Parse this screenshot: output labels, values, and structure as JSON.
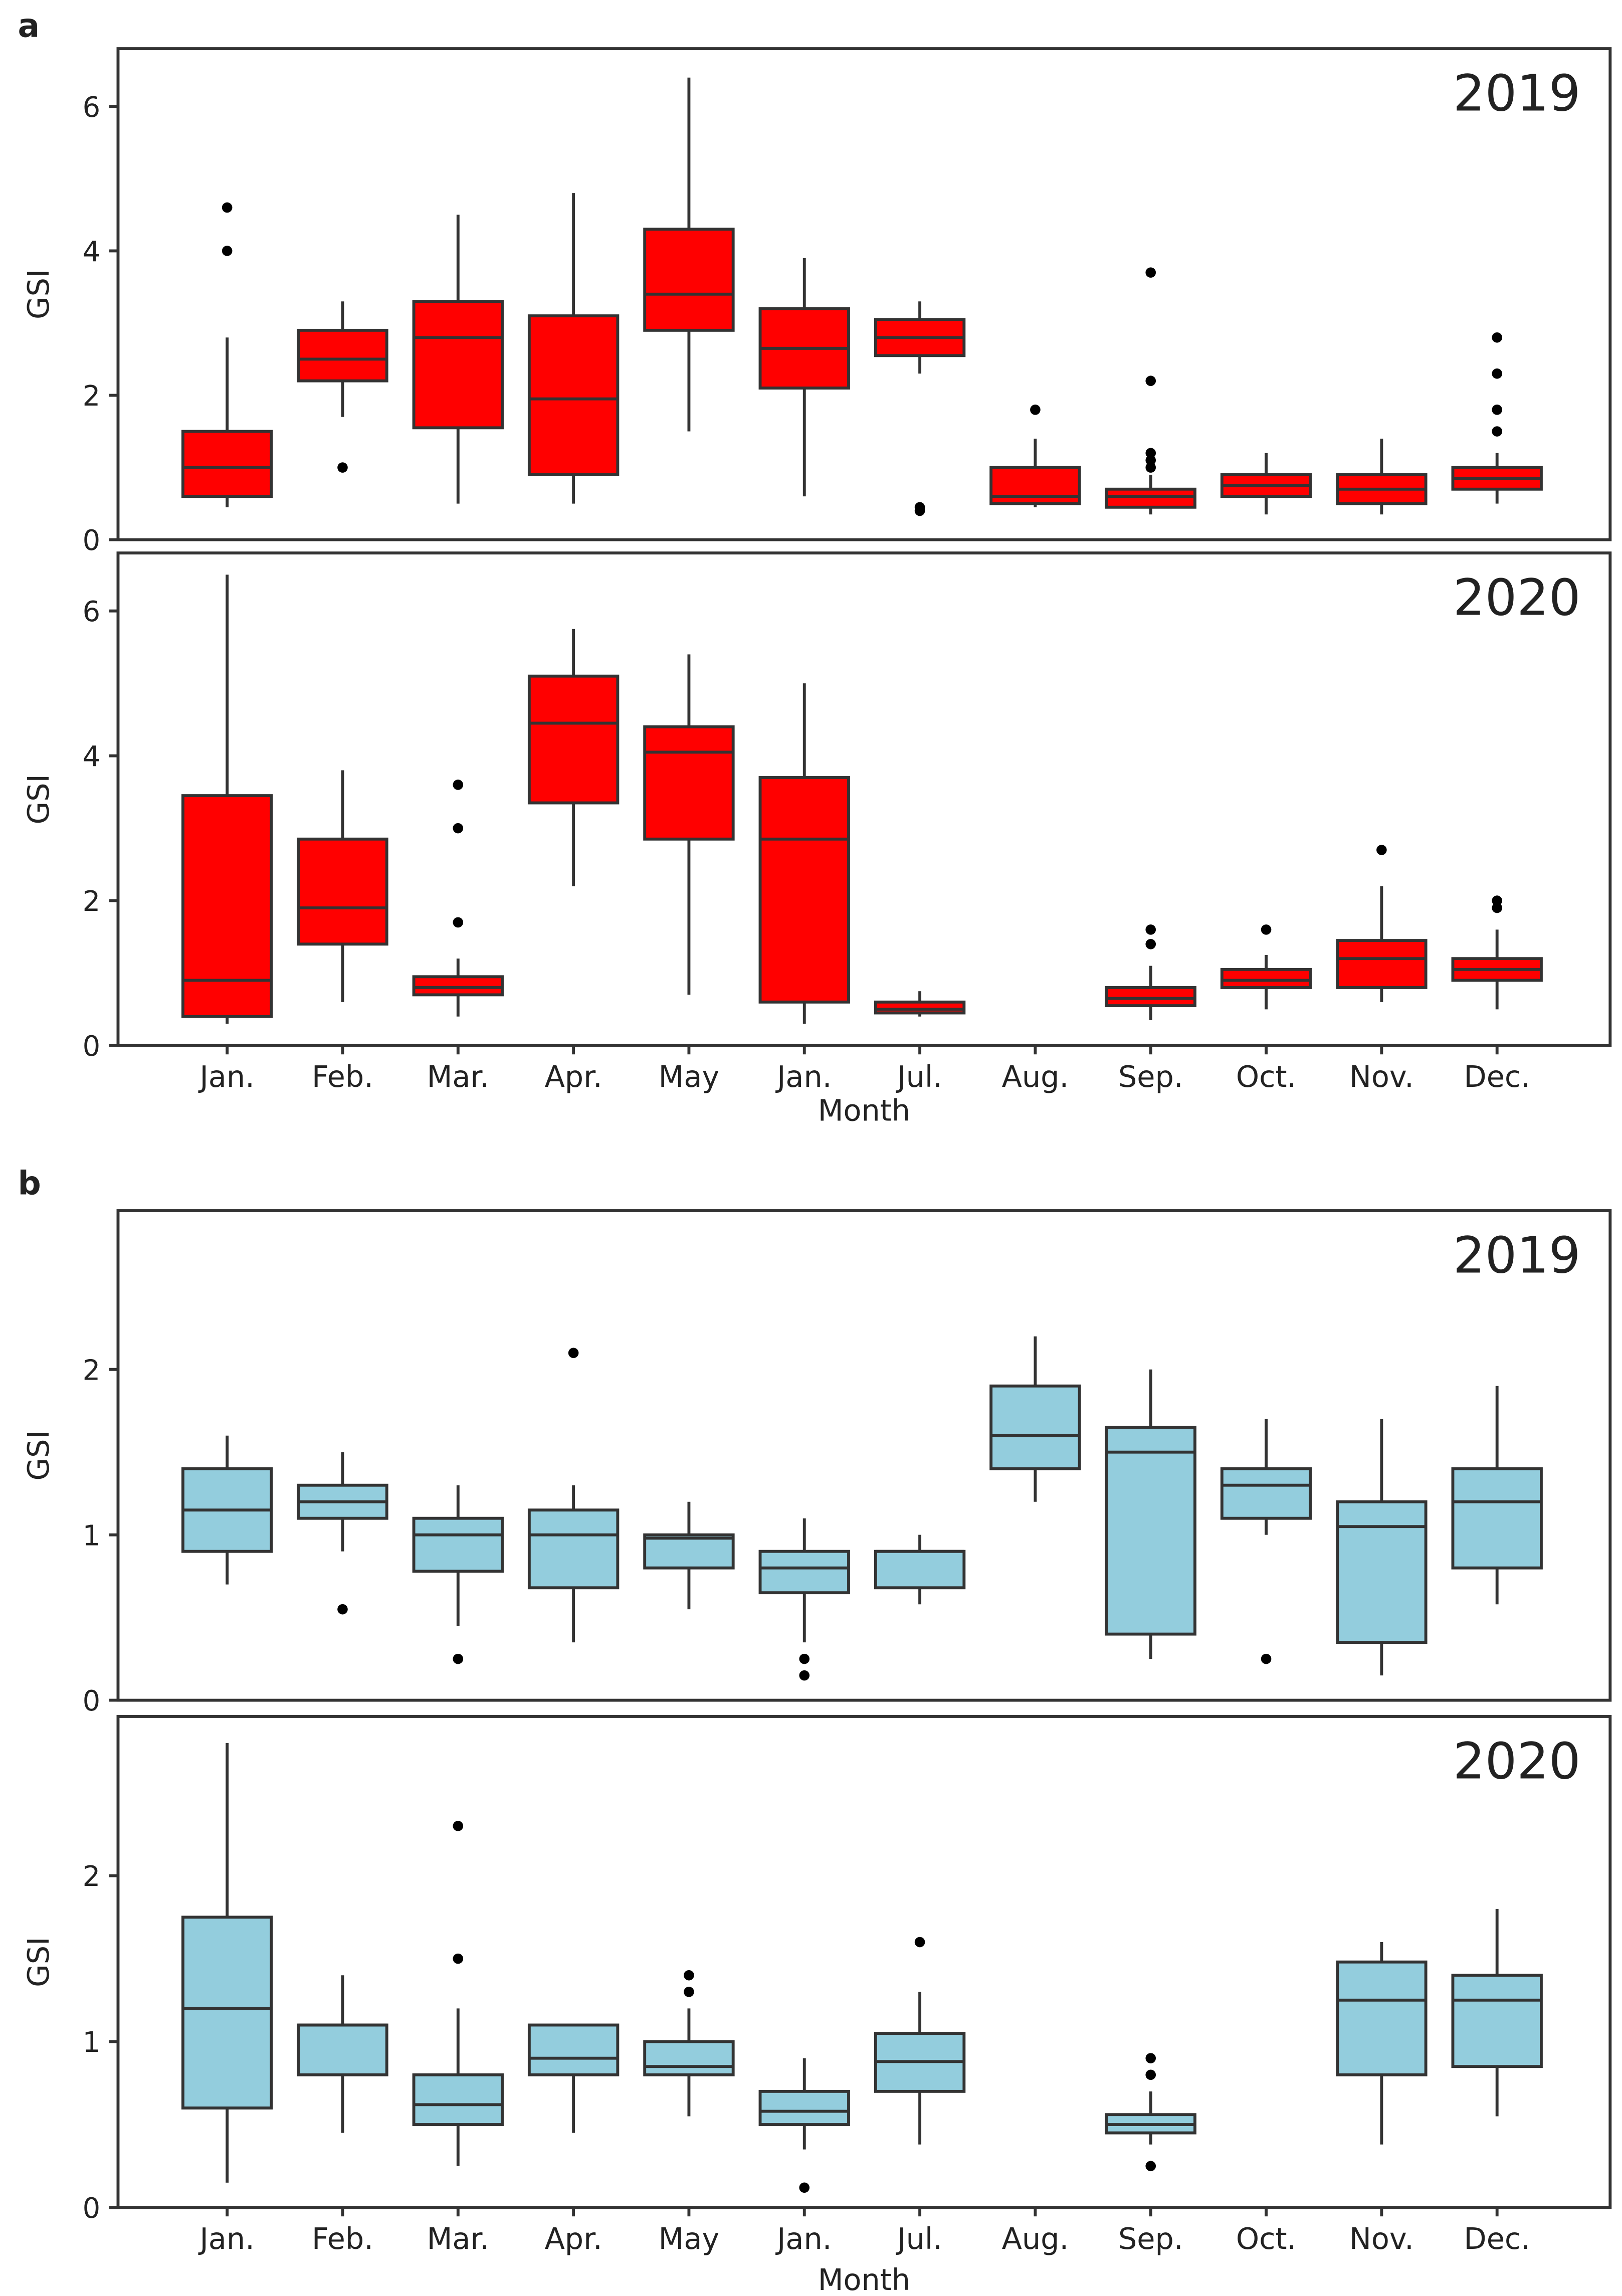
{
  "chart_data": [
    {
      "type": "box",
      "panel": "a",
      "title": "2019",
      "xlabel": "",
      "ylabel": "GSI",
      "ylim": [
        0,
        6.8
      ],
      "yticks": [
        0,
        2,
        4,
        6
      ],
      "fill": "#ff0000",
      "categories": [
        "Jan.",
        "Feb.",
        "Mar.",
        "Apr.",
        "May",
        "Jan.",
        "Jul.",
        "Aug.",
        "Sep.",
        "Oct.",
        "Nov.",
        "Dec."
      ],
      "boxes": [
        {
          "low": 0.45,
          "q1": 0.6,
          "med": 1.0,
          "q3": 1.5,
          "high": 2.8,
          "outliers": [
            4.0,
            4.6
          ]
        },
        {
          "low": 1.7,
          "q1": 2.2,
          "med": 2.5,
          "q3": 2.9,
          "high": 3.3,
          "outliers": [
            1.0
          ]
        },
        {
          "low": 0.5,
          "q1": 1.55,
          "med": 2.8,
          "q3": 3.3,
          "high": 4.5,
          "outliers": []
        },
        {
          "low": 0.5,
          "q1": 0.9,
          "med": 1.95,
          "q3": 3.1,
          "high": 4.8,
          "outliers": []
        },
        {
          "low": 1.5,
          "q1": 2.9,
          "med": 3.4,
          "q3": 4.3,
          "high": 6.4,
          "outliers": []
        },
        {
          "low": 0.6,
          "q1": 2.1,
          "med": 2.65,
          "q3": 3.2,
          "high": 3.9,
          "outliers": []
        },
        {
          "low": 2.3,
          "q1": 2.55,
          "med": 2.8,
          "q3": 3.05,
          "high": 3.3,
          "outliers": [
            0.4,
            0.45
          ]
        },
        {
          "low": 0.45,
          "q1": 0.5,
          "med": 0.6,
          "q3": 1.0,
          "high": 1.4,
          "outliers": [
            1.8
          ]
        },
        {
          "low": 0.35,
          "q1": 0.45,
          "med": 0.6,
          "q3": 0.7,
          "high": 0.9,
          "outliers": [
            1.0,
            1.1,
            1.2,
            2.2,
            3.7
          ]
        },
        {
          "low": 0.35,
          "q1": 0.6,
          "med": 0.75,
          "q3": 0.9,
          "high": 1.2,
          "outliers": []
        },
        {
          "low": 0.35,
          "q1": 0.5,
          "med": 0.7,
          "q3": 0.9,
          "high": 1.4,
          "outliers": []
        },
        {
          "low": 0.5,
          "q1": 0.7,
          "med": 0.85,
          "q3": 1.0,
          "high": 1.2,
          "outliers": [
            1.5,
            1.8,
            2.3,
            2.8
          ]
        }
      ]
    },
    {
      "type": "box",
      "panel": "",
      "title": "2020",
      "xlabel": "Month",
      "ylabel": "GSI",
      "ylim": [
        0,
        6.8
      ],
      "yticks": [
        0,
        2,
        4,
        6
      ],
      "fill": "#ff0000",
      "categories": [
        "Jan.",
        "Feb.",
        "Mar.",
        "Apr.",
        "May",
        "Jan.",
        "Jul.",
        "Aug.",
        "Sep.",
        "Oct.",
        "Nov.",
        "Dec."
      ],
      "boxes": [
        {
          "low": 0.3,
          "q1": 0.4,
          "med": 0.9,
          "q3": 3.45,
          "high": 6.5,
          "outliers": []
        },
        {
          "low": 0.6,
          "q1": 1.4,
          "med": 1.9,
          "q3": 2.85,
          "high": 3.8,
          "outliers": []
        },
        {
          "low": 0.4,
          "q1": 0.7,
          "med": 0.8,
          "q3": 0.95,
          "high": 1.2,
          "outliers": [
            1.7,
            3.0,
            3.6
          ]
        },
        {
          "low": 2.2,
          "q1": 3.35,
          "med": 4.45,
          "q3": 5.1,
          "high": 5.75,
          "outliers": []
        },
        {
          "low": 0.7,
          "q1": 2.85,
          "med": 4.05,
          "q3": 4.4,
          "high": 5.4,
          "outliers": []
        },
        {
          "low": 0.3,
          "q1": 0.6,
          "med": 2.85,
          "q3": 3.7,
          "high": 5.0,
          "outliers": []
        },
        {
          "low": 0.4,
          "q1": 0.45,
          "med": 0.5,
          "q3": 0.6,
          "high": 0.75,
          "outliers": []
        },
        null,
        {
          "low": 0.35,
          "q1": 0.55,
          "med": 0.65,
          "q3": 0.8,
          "high": 1.1,
          "outliers": [
            1.4,
            1.6
          ]
        },
        {
          "low": 0.5,
          "q1": 0.8,
          "med": 0.9,
          "q3": 1.05,
          "high": 1.25,
          "outliers": [
            1.6
          ]
        },
        {
          "low": 0.6,
          "q1": 0.8,
          "med": 1.2,
          "q3": 1.45,
          "high": 2.2,
          "outliers": [
            2.7
          ]
        },
        {
          "low": 0.5,
          "q1": 0.9,
          "med": 1.05,
          "q3": 1.2,
          "high": 1.6,
          "outliers": [
            1.9,
            2.0
          ]
        }
      ]
    },
    {
      "type": "box",
      "panel": "b",
      "title": "2019",
      "xlabel": "",
      "ylabel": "GSI",
      "ylim": [
        0,
        2.96
      ],
      "yticks": [
        0,
        1,
        2
      ],
      "fill": "#93cddd",
      "categories": [
        "Jan.",
        "Feb.",
        "Mar.",
        "Apr.",
        "May",
        "Jan.",
        "Jul.",
        "Aug.",
        "Sep.",
        "Oct.",
        "Nov.",
        "Dec."
      ],
      "boxes": [
        {
          "low": 0.7,
          "q1": 0.9,
          "med": 1.15,
          "q3": 1.4,
          "high": 1.6,
          "outliers": []
        },
        {
          "low": 0.9,
          "q1": 1.1,
          "med": 1.2,
          "q3": 1.3,
          "high": 1.5,
          "outliers": [
            0.55
          ]
        },
        {
          "low": 0.45,
          "q1": 0.78,
          "med": 1.0,
          "q3": 1.1,
          "high": 1.3,
          "outliers": [
            0.25
          ]
        },
        {
          "low": 0.35,
          "q1": 0.68,
          "med": 1.0,
          "q3": 1.15,
          "high": 1.3,
          "outliers": [
            2.1
          ]
        },
        {
          "low": 0.55,
          "q1": 0.8,
          "med": 0.98,
          "q3": 1.0,
          "high": 1.2,
          "outliers": []
        },
        {
          "low": 0.35,
          "q1": 0.65,
          "med": 0.8,
          "q3": 0.9,
          "high": 1.1,
          "outliers": [
            0.15,
            0.25
          ]
        },
        {
          "low": 0.58,
          "q1": 0.68,
          "med": 0.9,
          "q3": 0.9,
          "high": 1.0,
          "outliers": []
        },
        {
          "low": 1.2,
          "q1": 1.4,
          "med": 1.6,
          "q3": 1.9,
          "high": 2.2,
          "outliers": []
        },
        {
          "low": 0.25,
          "q1": 0.4,
          "med": 1.5,
          "q3": 1.65,
          "high": 2.0,
          "outliers": []
        },
        {
          "low": 1.0,
          "q1": 1.1,
          "med": 1.3,
          "q3": 1.4,
          "high": 1.7,
          "outliers": [
            0.25
          ]
        },
        {
          "low": 0.15,
          "q1": 0.35,
          "med": 1.05,
          "q3": 1.2,
          "high": 1.7,
          "outliers": []
        },
        {
          "low": 0.58,
          "q1": 0.8,
          "med": 1.2,
          "q3": 1.4,
          "high": 1.9,
          "outliers": []
        }
      ]
    },
    {
      "type": "box",
      "panel": "",
      "title": "2020",
      "xlabel": "Month",
      "ylabel": "GSI",
      "ylim": [
        0,
        2.96
      ],
      "yticks": [
        0,
        1,
        2
      ],
      "fill": "#93cddd",
      "categories": [
        "Jan.",
        "Feb.",
        "Mar.",
        "Apr.",
        "May",
        "Jan.",
        "Jul.",
        "Aug.",
        "Sep.",
        "Oct.",
        "Nov.",
        "Dec."
      ],
      "boxes": [
        {
          "low": 0.15,
          "q1": 0.6,
          "med": 1.2,
          "q3": 1.75,
          "high": 2.8,
          "outliers": []
        },
        {
          "low": 0.45,
          "q1": 0.8,
          "med": 1.1,
          "q3": 1.1,
          "high": 1.4,
          "outliers": []
        },
        {
          "low": 0.25,
          "q1": 0.5,
          "med": 0.62,
          "q3": 0.8,
          "high": 1.2,
          "outliers": [
            1.5,
            2.3
          ]
        },
        {
          "low": 0.45,
          "q1": 0.8,
          "med": 0.9,
          "q3": 1.1,
          "high": 1.1,
          "outliers": []
        },
        {
          "low": 0.55,
          "q1": 0.8,
          "med": 0.85,
          "q3": 1.0,
          "high": 1.2,
          "outliers": [
            1.3,
            1.4
          ]
        },
        {
          "low": 0.35,
          "q1": 0.5,
          "med": 0.58,
          "q3": 0.7,
          "high": 0.9,
          "outliers": [
            0.12
          ]
        },
        {
          "low": 0.38,
          "q1": 0.7,
          "med": 0.88,
          "q3": 1.05,
          "high": 1.3,
          "outliers": [
            1.6
          ]
        },
        null,
        {
          "low": 0.38,
          "q1": 0.45,
          "med": 0.5,
          "q3": 0.56,
          "high": 0.7,
          "outliers": [
            0.25,
            0.8,
            0.9
          ]
        },
        null,
        {
          "low": 0.38,
          "q1": 0.8,
          "med": 1.25,
          "q3": 1.48,
          "high": 1.6,
          "outliers": []
        },
        {
          "low": 0.55,
          "q1": 0.85,
          "med": 1.25,
          "q3": 1.4,
          "high": 1.8,
          "outliers": []
        }
      ]
    }
  ]
}
